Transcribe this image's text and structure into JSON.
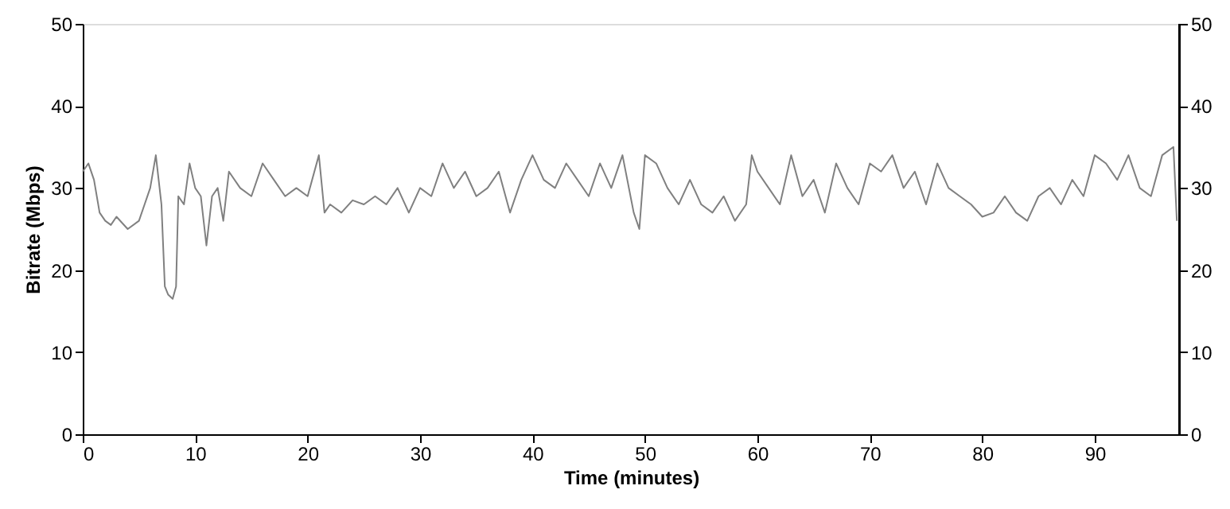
{
  "chart_data": {
    "type": "line",
    "xlabel": "Time (minutes)",
    "ylabel": "Bitrate (Mbps)",
    "xlim": [
      0,
      97.5
    ],
    "xticks": [
      0,
      10,
      20,
      30,
      40,
      50,
      60,
      70,
      80,
      90
    ],
    "ylim": [
      0,
      50
    ],
    "yticks": [
      0,
      10,
      20,
      30,
      40,
      50
    ],
    "y2lim": [
      0,
      50
    ],
    "y2ticks": [
      0,
      10,
      20,
      30,
      40,
      50
    ],
    "grid": false,
    "series": [
      {
        "color": "#808080",
        "x": [
          0,
          0.5,
          1,
          1.5,
          2,
          2.5,
          3,
          4,
          5,
          5.5,
          6,
          6.5,
          7,
          7.3,
          7.6,
          8,
          8.3,
          8.5,
          9,
          9.5,
          10,
          10.5,
          11,
          11.5,
          12,
          12.5,
          13,
          14,
          15,
          16,
          17,
          18,
          19,
          20,
          21,
          21.5,
          22,
          23,
          24,
          25,
          26,
          27,
          28,
          29,
          30,
          31,
          32,
          33,
          34,
          35,
          36,
          37,
          38,
          39,
          40,
          41,
          42,
          43,
          44,
          45,
          46,
          47,
          48,
          49,
          49.5,
          50,
          51,
          52,
          53,
          54,
          55,
          56,
          57,
          58,
          59,
          59.5,
          60,
          61,
          62,
          63,
          64,
          65,
          66,
          67,
          68,
          69,
          70,
          71,
          72,
          73,
          74,
          75,
          76,
          77,
          78,
          79,
          80,
          81,
          82,
          83,
          84,
          85,
          86,
          87,
          88,
          89,
          90,
          91,
          92,
          93,
          94,
          95,
          96,
          97,
          97.3
        ],
        "values": [
          32,
          33,
          31,
          27,
          26,
          25.5,
          26.5,
          25,
          26,
          28,
          30,
          34,
          28,
          18,
          17,
          16.5,
          18,
          29,
          28,
          33,
          30,
          29,
          23,
          29,
          30,
          26,
          32,
          30,
          29,
          33,
          31,
          29,
          30,
          29,
          34,
          27,
          28,
          27,
          28.5,
          28,
          29,
          28,
          30,
          27,
          30,
          29,
          33,
          30,
          32,
          29,
          30,
          32,
          27,
          31,
          34,
          31,
          30,
          33,
          31,
          29,
          33,
          30,
          34,
          27,
          25,
          34,
          33,
          30,
          28,
          31,
          28,
          27,
          29,
          26,
          28,
          34,
          32,
          30,
          28,
          34,
          29,
          31,
          27,
          33,
          30,
          28,
          33,
          32,
          34,
          30,
          32,
          28,
          33,
          30,
          29,
          28,
          26.5,
          27,
          29,
          27,
          26,
          29,
          30,
          28,
          31,
          29,
          34,
          33,
          31,
          34,
          30,
          29,
          34,
          35,
          26
        ]
      }
    ]
  }
}
